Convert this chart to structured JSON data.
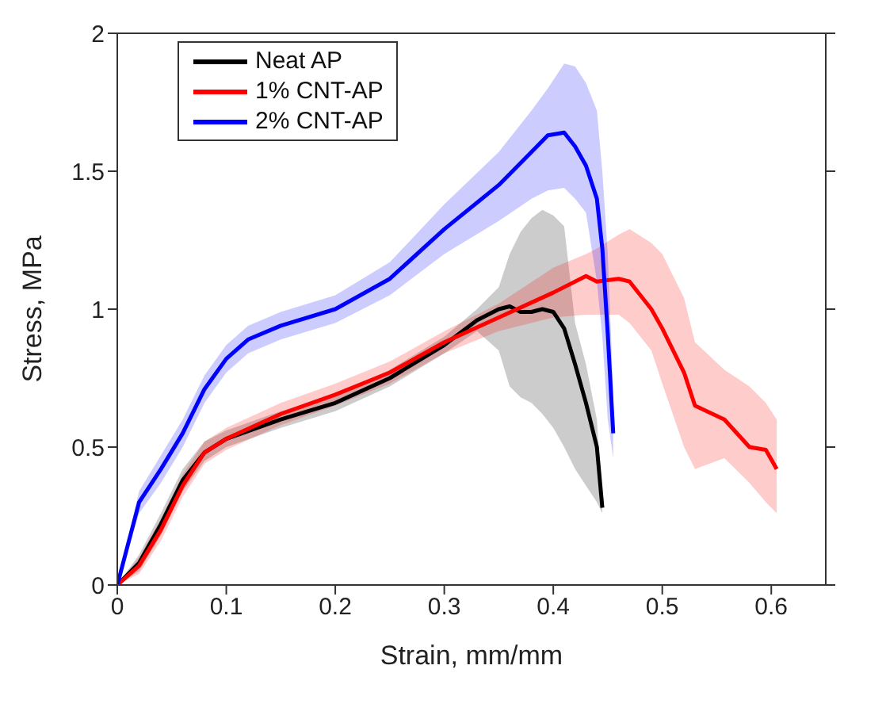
{
  "chart_data": {
    "type": "line",
    "xlabel": "Strain, mm/mm",
    "ylabel": "Stress, MPa",
    "xlim": [
      0,
      0.65
    ],
    "xticks": [
      0,
      0.1,
      0.2,
      0.3,
      0.4,
      0.5,
      0.6
    ],
    "ylim": [
      0,
      2
    ],
    "yticks": [
      0,
      0.5,
      1,
      1.5,
      2
    ],
    "grid": false,
    "legend": "top left",
    "marker": "none",
    "line_style": "solid",
    "series": [
      {
        "name": "Neat AP",
        "color": "#000000",
        "x": [
          0,
          0.02,
          0.04,
          0.06,
          0.08,
          0.1,
          0.15,
          0.2,
          0.25,
          0.3,
          0.33,
          0.35,
          0.36,
          0.37,
          0.38,
          0.39,
          0.4,
          0.41,
          0.42,
          0.43,
          0.44,
          0.445
        ],
        "values": [
          0,
          0.08,
          0.22,
          0.38,
          0.48,
          0.53,
          0.6,
          0.66,
          0.75,
          0.87,
          0.96,
          1.0,
          1.01,
          0.99,
          0.99,
          1.0,
          0.99,
          0.93,
          0.8,
          0.66,
          0.5,
          0.28
        ],
        "upper": [
          0,
          0.11,
          0.26,
          0.42,
          0.52,
          0.56,
          0.63,
          0.69,
          0.78,
          0.9,
          1.0,
          1.08,
          1.2,
          1.28,
          1.33,
          1.36,
          1.34,
          1.3,
          0.95,
          0.8,
          0.6,
          0.3
        ],
        "lower": [
          0,
          0.05,
          0.18,
          0.34,
          0.45,
          0.5,
          0.57,
          0.63,
          0.72,
          0.84,
          0.92,
          0.85,
          0.72,
          0.68,
          0.66,
          0.62,
          0.57,
          0.5,
          0.42,
          0.36,
          0.3,
          0.26
        ]
      },
      {
        "name": "1% CNT-AP",
        "color": "#ff0000",
        "x": [
          0,
          0.02,
          0.04,
          0.06,
          0.08,
          0.1,
          0.15,
          0.2,
          0.25,
          0.3,
          0.35,
          0.4,
          0.43,
          0.44,
          0.46,
          0.47,
          0.49,
          0.5,
          0.52,
          0.53,
          0.557,
          0.58,
          0.595,
          0.605
        ],
        "values": [
          0,
          0.07,
          0.2,
          0.36,
          0.48,
          0.53,
          0.62,
          0.69,
          0.77,
          0.88,
          0.97,
          1.06,
          1.12,
          1.1,
          1.11,
          1.1,
          1.0,
          0.93,
          0.77,
          0.65,
          0.6,
          0.5,
          0.49,
          0.42
        ],
        "upper": [
          0,
          0.1,
          0.24,
          0.4,
          0.52,
          0.57,
          0.66,
          0.73,
          0.81,
          0.92,
          1.02,
          1.15,
          1.2,
          1.22,
          1.27,
          1.29,
          1.24,
          1.2,
          1.04,
          0.88,
          0.78,
          0.72,
          0.66,
          0.6
        ],
        "lower": [
          0,
          0.04,
          0.16,
          0.32,
          0.44,
          0.49,
          0.58,
          0.65,
          0.73,
          0.84,
          0.92,
          0.97,
          0.98,
          0.98,
          0.98,
          0.95,
          0.85,
          0.73,
          0.5,
          0.42,
          0.46,
          0.37,
          0.3,
          0.26
        ]
      },
      {
        "name": "2% CNT-AP",
        "color": "#0000ff",
        "x": [
          0,
          0.02,
          0.04,
          0.06,
          0.08,
          0.1,
          0.12,
          0.15,
          0.2,
          0.25,
          0.3,
          0.35,
          0.38,
          0.395,
          0.41,
          0.42,
          0.43,
          0.44,
          0.445,
          0.45,
          0.455
        ],
        "values": [
          0,
          0.3,
          0.42,
          0.55,
          0.71,
          0.82,
          0.89,
          0.94,
          1.0,
          1.11,
          1.29,
          1.45,
          1.57,
          1.63,
          1.64,
          1.59,
          1.52,
          1.4,
          1.22,
          0.91,
          0.55
        ],
        "upper": [
          0,
          0.34,
          0.47,
          0.6,
          0.76,
          0.87,
          0.94,
          0.99,
          1.05,
          1.17,
          1.38,
          1.57,
          1.72,
          1.8,
          1.89,
          1.88,
          1.82,
          1.72,
          1.5,
          1.2,
          0.7
        ],
        "lower": [
          0,
          0.26,
          0.37,
          0.5,
          0.66,
          0.77,
          0.84,
          0.89,
          0.95,
          1.05,
          1.2,
          1.32,
          1.4,
          1.43,
          1.44,
          1.4,
          1.35,
          1.1,
          0.9,
          0.6,
          0.46
        ]
      }
    ]
  }
}
